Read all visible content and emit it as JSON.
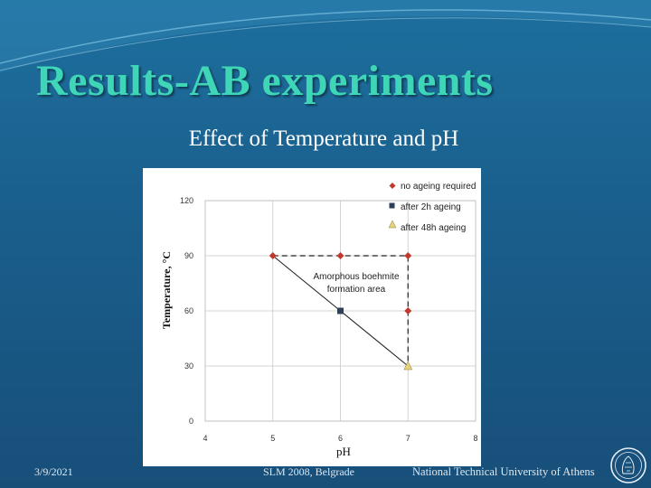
{
  "slide": {
    "title": "Results-AB experiments",
    "subtitle": "Effect of Temperature and pH"
  },
  "footer": {
    "date": "3/9/2021",
    "event": "SLM 2008, Belgrade",
    "organization": "National Technical University of Athens"
  },
  "colors": {
    "title": "#3fd6b8",
    "background": "#1a5e8c",
    "no_ageing": "#c0392b",
    "after_2h": "#2e3f5a",
    "after_48h": "#e8d27a"
  },
  "chart_data": {
    "type": "scatter",
    "xlabel": "pH",
    "ylabel": "Temperature, °C",
    "xlim": [
      4,
      8
    ],
    "ylim": [
      0,
      120
    ],
    "xticks": [
      "4",
      "5",
      "6",
      "7",
      "8"
    ],
    "yticks": [
      "0",
      "30",
      "60",
      "90",
      "120"
    ],
    "grid": true,
    "legend_position": "top-right",
    "series": [
      {
        "name": "no ageing required",
        "marker": "diamond",
        "color": "#c0392b",
        "points": [
          {
            "x": 5,
            "y": 90
          },
          {
            "x": 6,
            "y": 90
          },
          {
            "x": 7,
            "y": 90
          },
          {
            "x": 7,
            "y": 60
          }
        ]
      },
      {
        "name": "after 2h ageing",
        "marker": "square",
        "color": "#2e3f5a",
        "points": [
          {
            "x": 6,
            "y": 60
          }
        ]
      },
      {
        "name": "after 48h ageing",
        "marker": "triangle",
        "color": "#e8d27a",
        "points": [
          {
            "x": 7,
            "y": 30
          }
        ]
      }
    ],
    "region": {
      "label_lines": [
        "Amorphous boehmite",
        "formation area"
      ],
      "solid_line": [
        {
          "x": 5,
          "y": 90
        },
        {
          "x": 6,
          "y": 60
        },
        {
          "x": 7,
          "y": 30
        }
      ],
      "dashed_line": [
        {
          "x": 5,
          "y": 90
        },
        {
          "x": 7,
          "y": 90
        },
        {
          "x": 7,
          "y": 30
        }
      ]
    }
  }
}
